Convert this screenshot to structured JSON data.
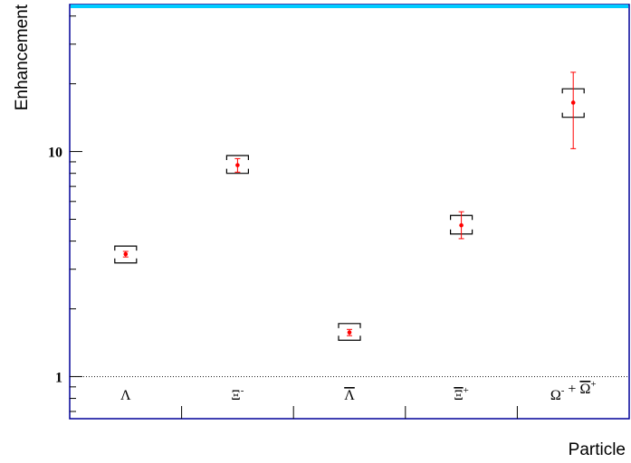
{
  "chart_data": {
    "type": "scatter",
    "xlabel": "Particle",
    "ylabel": "Enhancement",
    "yscale": "log",
    "ylim": [
      0.65,
      45
    ],
    "y_ticks": [
      {
        "value": 1,
        "label": "1"
      },
      {
        "value": 10,
        "label": "10"
      }
    ],
    "reference_line": 1,
    "categories": [
      {
        "base": "Λ",
        "sup": "",
        "overline": false
      },
      {
        "base": "Ξ",
        "sup": "-",
        "overline": false
      },
      {
        "base": "Λ",
        "sup": "",
        "overline": true
      },
      {
        "base": "Ξ",
        "sup": "+",
        "overline": true
      },
      {
        "base": "Ω",
        "sup": "-",
        "overline": false,
        "plus": "Ω",
        "plus_sup": "+",
        "plus_overline": true
      }
    ],
    "points": [
      {
        "value": 3.5,
        "stat_low": 3.4,
        "stat_high": 3.6,
        "sys_low": 3.2,
        "sys_high": 3.8
      },
      {
        "value": 8.7,
        "stat_low": 8.1,
        "stat_high": 9.3,
        "sys_low": 8.0,
        "sys_high": 9.6
      },
      {
        "value": 1.57,
        "stat_low": 1.52,
        "stat_high": 1.62,
        "sys_low": 1.45,
        "sys_high": 1.72
      },
      {
        "value": 4.7,
        "stat_low": 4.1,
        "stat_high": 5.4,
        "sys_low": 4.3,
        "sys_high": 5.2
      },
      {
        "value": 16.5,
        "stat_low": 10.3,
        "stat_high": 22.5,
        "sys_low": 14.2,
        "sys_high": 19.0
      }
    ],
    "colors": {
      "points": "#ff0000",
      "frame": "#000099",
      "top_band": "#00ccff",
      "systematics": "#000000"
    }
  }
}
